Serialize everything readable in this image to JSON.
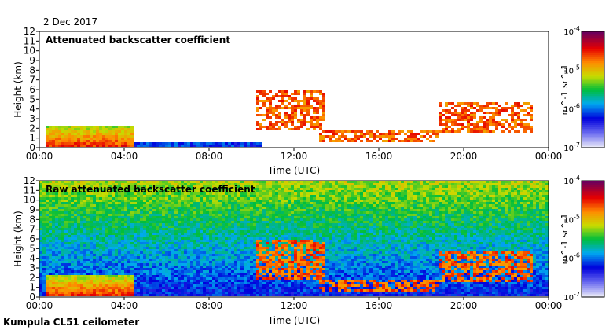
{
  "header": {
    "date": "2 Dec 2017"
  },
  "footer": {
    "site": "Kumpula CL51 ceilometer"
  },
  "colors": {
    "frame": "#000000",
    "background": "#ffffff"
  },
  "chart_data": [
    {
      "type": "heatmap",
      "title": "Attenuated backscatter coefficient",
      "xlabel": "Time (UTC)",
      "ylabel": "Height (km)",
      "x_ticks": [
        "00:00",
        "04:00",
        "08:00",
        "12:00",
        "16:00",
        "20:00",
        "00:00"
      ],
      "x_range_hours": [
        0,
        24
      ],
      "y_ticks": [
        0,
        1,
        2,
        3,
        4,
        5,
        6,
        7,
        8,
        9,
        10,
        11,
        12
      ],
      "ylim": [
        0,
        12
      ],
      "colorbar": {
        "scale": "log",
        "ticks": [
          "10^-7",
          "10^-6",
          "10^-5",
          "10^-4"
        ],
        "exponents": [
          -7,
          -6,
          -5,
          -4
        ],
        "label": "m^-1 sr^-1"
      },
      "features": [
        {
          "kind": "layer",
          "t0": 0.3,
          "t1": 4.5,
          "h0": 0.05,
          "h1": 2.2,
          "level": "high"
        },
        {
          "kind": "aerosol",
          "t0": 4.5,
          "t1": 10.5,
          "h0": 0.05,
          "h1": 0.5,
          "level": "low"
        },
        {
          "kind": "cloud",
          "t0": 10.2,
          "t1": 13.5,
          "h0": 1.8,
          "h1": 5.8,
          "level": "high"
        },
        {
          "kind": "cloud",
          "t0": 13.2,
          "t1": 18.8,
          "h0": 0.5,
          "h1": 1.8,
          "level": "high"
        },
        {
          "kind": "cloud",
          "t0": 18.8,
          "t1": 23.2,
          "h0": 1.5,
          "h1": 4.8,
          "level": "high"
        }
      ]
    },
    {
      "type": "heatmap",
      "title": "Raw attenuated backscatter coefficient",
      "xlabel": "Time (UTC)",
      "ylabel": "Height (km)",
      "x_ticks": [
        "00:00",
        "04:00",
        "08:00",
        "12:00",
        "16:00",
        "20:00",
        "00:00"
      ],
      "x_range_hours": [
        0,
        24
      ],
      "y_ticks": [
        0,
        1,
        2,
        3,
        4,
        5,
        6,
        7,
        8,
        9,
        10,
        11,
        12
      ],
      "ylim": [
        0,
        12
      ],
      "colorbar": {
        "scale": "log",
        "ticks": [
          "10^-7",
          "10^-6",
          "10^-5",
          "10^-4"
        ],
        "exponents": [
          -7,
          -6,
          -5,
          -4
        ],
        "label": "m^-1 sr^-1"
      },
      "features": [
        {
          "kind": "noise",
          "t0": 0,
          "t1": 24,
          "h0": 0,
          "h1": 12,
          "level": "medium"
        },
        {
          "kind": "layer",
          "t0": 0.3,
          "t1": 4.5,
          "h0": 0.05,
          "h1": 2.2,
          "level": "high"
        },
        {
          "kind": "cloud",
          "t0": 10.2,
          "t1": 13.5,
          "h0": 1.8,
          "h1": 5.8,
          "level": "high"
        },
        {
          "kind": "cloud",
          "t0": 13.2,
          "t1": 18.8,
          "h0": 0.5,
          "h1": 1.8,
          "level": "high"
        },
        {
          "kind": "cloud",
          "t0": 18.8,
          "t1": 23.2,
          "h0": 1.5,
          "h1": 4.8,
          "level": "high"
        }
      ]
    }
  ]
}
